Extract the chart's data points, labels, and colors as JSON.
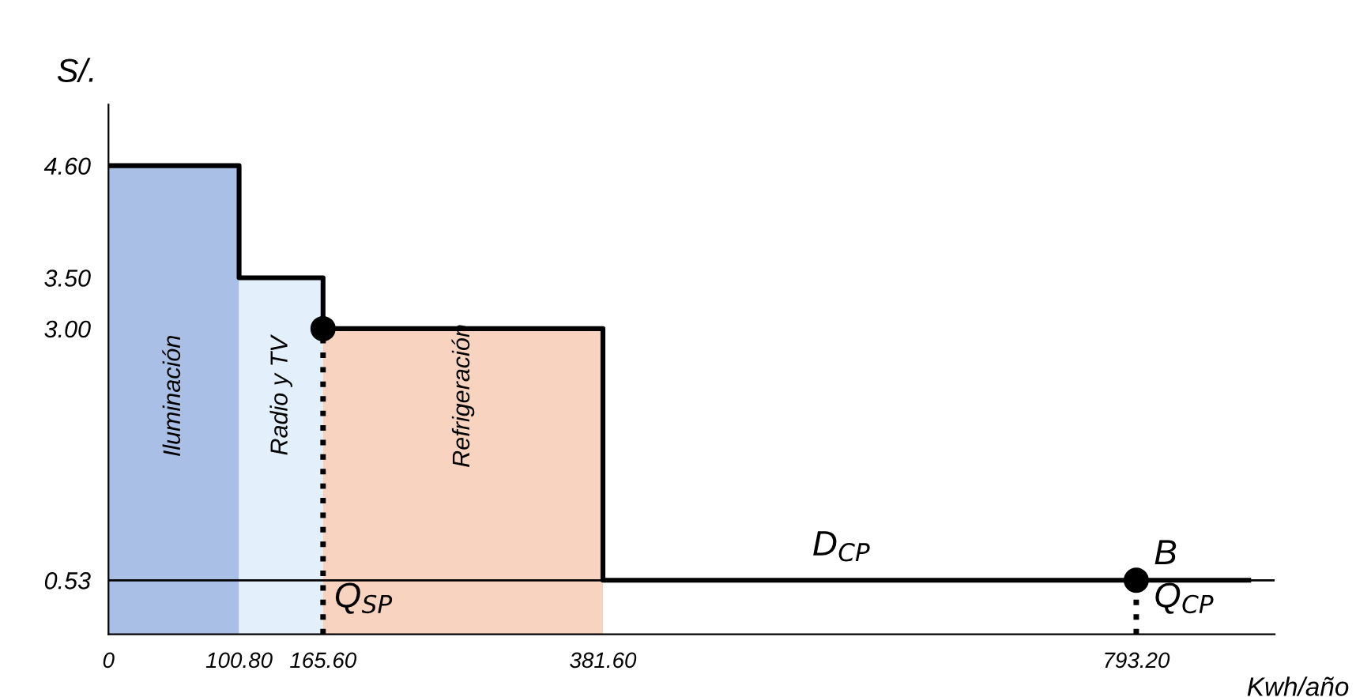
{
  "chart_data": {
    "type": "step",
    "xlabel": "Kwh/año",
    "ylabel": "S/.",
    "xlim": [
      0,
      900
    ],
    "ylim": [
      0,
      5.2
    ],
    "xticks": [
      0,
      {
        "value": 100.8,
        "label": "100.80"
      },
      {
        "value": 165.6,
        "label": "165.60"
      },
      {
        "value": 381.6,
        "label": "381.60"
      },
      {
        "value": 793.2,
        "label": "793.20"
      }
    ],
    "yticks": [
      {
        "value": 0.53,
        "label": "0.53"
      },
      {
        "value": 3.0,
        "label": "3.00"
      },
      {
        "value": 3.5,
        "label": "3.50"
      },
      {
        "value": 4.6,
        "label": "4.60"
      }
    ],
    "series": [
      {
        "type": "area",
        "name": "Iluminación",
        "color": "#a9bfe6",
        "x": [
          0,
          100.8
        ],
        "values": [
          4.6,
          4.6
        ]
      },
      {
        "type": "area",
        "name": "Radio y TV",
        "color": "#e3f0fb",
        "x": [
          100.8,
          165.6
        ],
        "values": [
          3.5,
          3.5
        ]
      },
      {
        "type": "area",
        "name": "Refrigeración",
        "color": "#f8d3c0",
        "x": [
          165.6,
          381.6
        ],
        "values": [
          3.0,
          3.0
        ]
      },
      {
        "color": "#000000",
        "x": [
          0,
          100.8,
          165.6,
          381.6,
          880
        ],
        "values": [
          4.6,
          3.5,
          3.0,
          0.53,
          0.53
        ]
      },
      {
        "type": "line",
        "line_style": "dotted",
        "color": "#000000",
        "x": [
          165.6,
          165.6
        ],
        "values": [
          0,
          3.0
        ]
      },
      {
        "type": "line",
        "line_style": "dotted",
        "color": "#000000",
        "x": [
          793.2,
          793.2
        ],
        "values": [
          0,
          0.53
        ]
      },
      {
        "type": "scatter",
        "marker": "circle",
        "color": "#000000",
        "x": [
          165.6,
          793.2
        ],
        "values": [
          3.0,
          0.53
        ]
      }
    ],
    "ref_lines": [
      {
        "axis": "y",
        "value": 0.53,
        "color": "#000000"
      }
    ],
    "annotations": [
      {
        "text": "D$_{CP}$",
        "x": 560,
        "y": 0.53
      },
      {
        "text": "B",
        "x": 793.2,
        "y": 0.53
      },
      {
        "text": "Q$_{SP}$",
        "x": 165.6,
        "y": 0.15
      },
      {
        "text": "Q$_{CP}$",
        "x": 793.2,
        "y": 0.15
      }
    ],
    "grid": false,
    "legend": false
  }
}
